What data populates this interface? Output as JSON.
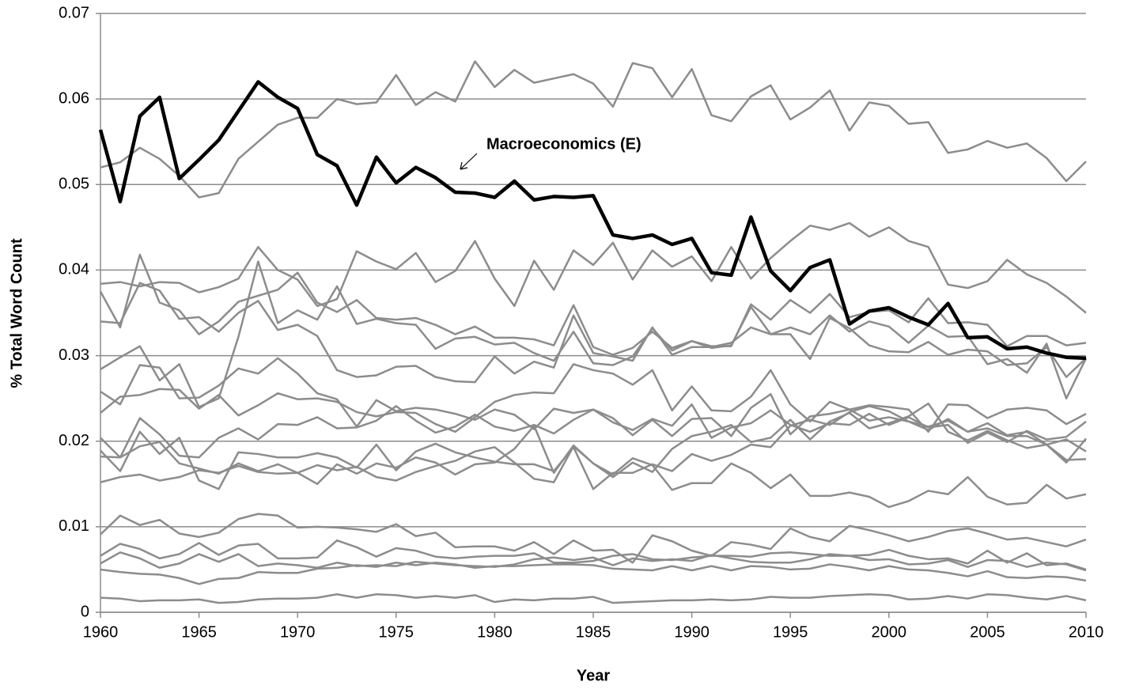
{
  "chart_data": {
    "type": "line",
    "x_label": "Year",
    "y_label": "% Total Word Count",
    "annotation": "Macroeconomics (E)",
    "x": [
      1960,
      1961,
      1962,
      1963,
      1964,
      1965,
      1966,
      1967,
      1968,
      1969,
      1970,
      1971,
      1972,
      1973,
      1974,
      1975,
      1976,
      1977,
      1978,
      1979,
      1980,
      1981,
      1982,
      1983,
      1984,
      1985,
      1986,
      1987,
      1988,
      1989,
      1990,
      1991,
      1992,
      1993,
      1994,
      1995,
      1996,
      1997,
      1998,
      1999,
      2000,
      2001,
      2002,
      2003,
      2004,
      2005,
      2006,
      2007,
      2008,
      2009,
      2010
    ],
    "xlim": [
      1960,
      2010
    ],
    "xticks": [
      1960,
      1965,
      1970,
      1975,
      1980,
      1985,
      1990,
      1995,
      2000,
      2005,
      2010
    ],
    "ylim": [
      0,
      0.07
    ],
    "yticks": [
      0,
      0.01,
      0.02,
      0.03,
      0.04,
      0.05,
      0.06,
      0.07
    ],
    "grid": true,
    "series": [
      {
        "color": "#000000",
        "values": [
          0.0564,
          0.048,
          0.058,
          0.0602,
          0.0507,
          0.0529,
          0.0552,
          0.0586,
          0.062,
          0.0602,
          0.0589,
          0.0535,
          0.0522,
          0.0476,
          0.0532,
          0.0502,
          0.052,
          0.0508,
          0.0491,
          0.049,
          0.0485,
          0.0504,
          0.0482,
          0.0486,
          0.0485,
          0.0487,
          0.0441,
          0.0437,
          0.0441,
          0.043,
          0.0437,
          0.0397,
          0.0394,
          0.0462,
          0.0399,
          0.0376,
          0.0403,
          0.0412,
          0.0337,
          0.0352,
          0.0356,
          0.0345,
          0.0336,
          0.0361,
          0.0321,
          0.0322,
          0.0308,
          0.031,
          0.0303,
          0.0298,
          0.0297
        ]
      },
      {
        "color": "#8c8c8c",
        "values": [
          0.052,
          0.0526,
          0.0543,
          0.053,
          0.051,
          0.0485,
          0.049,
          0.053,
          0.055,
          0.057,
          0.0578,
          0.0578,
          0.06,
          0.0594,
          0.0596,
          0.0628,
          0.0593,
          0.0608,
          0.0597,
          0.0644,
          0.0614,
          0.0634,
          0.0619,
          0.0624,
          0.0629,
          0.0618,
          0.0591,
          0.0642,
          0.0636,
          0.0602,
          0.0635,
          0.0581,
          0.0574,
          0.0603,
          0.0616,
          0.0576,
          0.059,
          0.061,
          0.0563,
          0.0596,
          0.0592,
          0.0571,
          0.0573,
          0.0537,
          0.0541,
          0.0551,
          0.0543,
          0.0548,
          0.0531,
          0.0504,
          0.0527
        ]
      },
      {
        "color": "#8c8c8c",
        "values": [
          0.0384,
          0.0386,
          0.0381,
          0.0386,
          0.0385,
          0.0374,
          0.038,
          0.039,
          0.0427,
          0.04,
          0.0389,
          0.0358,
          0.0366,
          0.0422,
          0.041,
          0.0401,
          0.042,
          0.0386,
          0.0399,
          0.0434,
          0.039,
          0.0358,
          0.0411,
          0.0377,
          0.0423,
          0.0406,
          0.0432,
          0.0389,
          0.0423,
          0.0404,
          0.0416,
          0.0387,
          0.0427,
          0.039,
          0.0414,
          0.0434,
          0.0452,
          0.0447,
          0.0455,
          0.0439,
          0.045,
          0.0434,
          0.0427,
          0.0383,
          0.0379,
          0.0387,
          0.0412,
          0.0395,
          0.0385,
          0.0369,
          0.035
        ]
      },
      {
        "color": "#8c8c8c",
        "values": [
          0.0375,
          0.0333,
          0.0418,
          0.0362,
          0.0353,
          0.0325,
          0.034,
          0.0363,
          0.037,
          0.0377,
          0.0397,
          0.0362,
          0.0351,
          0.0365,
          0.0344,
          0.0342,
          0.0344,
          0.0336,
          0.0325,
          0.0334,
          0.0321,
          0.0321,
          0.0319,
          0.0312,
          0.0359,
          0.031,
          0.0301,
          0.0309,
          0.0328,
          0.0309,
          0.0317,
          0.0311,
          0.0311,
          0.036,
          0.0342,
          0.0365,
          0.035,
          0.0372,
          0.0345,
          0.0351,
          0.0353,
          0.0339,
          0.0367,
          0.0338,
          0.0339,
          0.0336,
          0.0311,
          0.0323,
          0.0323,
          0.0312,
          0.0315
        ]
      },
      {
        "color": "#8c8c8c",
        "values": [
          0.034,
          0.0338,
          0.0385,
          0.0376,
          0.0343,
          0.0345,
          0.0328,
          0.035,
          0.0364,
          0.033,
          0.0336,
          0.0323,
          0.0283,
          0.0275,
          0.0277,
          0.0287,
          0.0288,
          0.0275,
          0.027,
          0.0269,
          0.0299,
          0.0279,
          0.0293,
          0.0286,
          0.0347,
          0.0303,
          0.0299,
          0.0294,
          0.0333,
          0.0301,
          0.031,
          0.031,
          0.0315,
          0.0333,
          0.0325,
          0.0333,
          0.0325,
          0.0347,
          0.0328,
          0.034,
          0.0334,
          0.0315,
          0.0335,
          0.0322,
          0.0323,
          0.029,
          0.0296,
          0.028,
          0.0314,
          0.025,
          0.0297
        ]
      },
      {
        "color": "#8c8c8c",
        "values": [
          0.0284,
          0.0298,
          0.0311,
          0.0271,
          0.029,
          0.024,
          0.025,
          0.0322,
          0.041,
          0.0338,
          0.0353,
          0.0342,
          0.0381,
          0.0337,
          0.0343,
          0.0338,
          0.0336,
          0.0308,
          0.032,
          0.0322,
          0.0313,
          0.0315,
          0.0303,
          0.0294,
          0.0328,
          0.0291,
          0.0289,
          0.0299,
          0.0332,
          0.0306,
          0.0317,
          0.0309,
          0.0312,
          0.0357,
          0.0325,
          0.0325,
          0.0296,
          0.0344,
          0.0332,
          0.0312,
          0.0305,
          0.0304,
          0.0316,
          0.0301,
          0.0307,
          0.0305,
          0.0289,
          0.0291,
          0.031,
          0.0275,
          0.0297
        ]
      },
      {
        "color": "#8c8c8c",
        "values": [
          0.0258,
          0.0243,
          0.0289,
          0.0286,
          0.025,
          0.0251,
          0.0265,
          0.0285,
          0.0279,
          0.0297,
          0.0279,
          0.0256,
          0.0249,
          0.0217,
          0.0248,
          0.0235,
          0.0239,
          0.0237,
          0.0232,
          0.0225,
          0.0237,
          0.0231,
          0.0214,
          0.0238,
          0.0233,
          0.0237,
          0.0227,
          0.0207,
          0.0225,
          0.0206,
          0.0226,
          0.0227,
          0.0206,
          0.0239,
          0.0255,
          0.0208,
          0.0229,
          0.0232,
          0.0237,
          0.0242,
          0.024,
          0.0237,
          0.0211,
          0.0243,
          0.0242,
          0.0227,
          0.0237,
          0.0239,
          0.0236,
          0.022,
          0.0232
        ]
      },
      {
        "color": "#8c8c8c",
        "values": [
          0.0233,
          0.0252,
          0.0254,
          0.0261,
          0.026,
          0.0238,
          0.0254,
          0.023,
          0.0242,
          0.0256,
          0.0249,
          0.025,
          0.0246,
          0.0234,
          0.0229,
          0.0234,
          0.0233,
          0.022,
          0.0211,
          0.0228,
          0.0246,
          0.0254,
          0.0257,
          0.0256,
          0.029,
          0.0283,
          0.0279,
          0.0266,
          0.0283,
          0.0236,
          0.0264,
          0.0236,
          0.0235,
          0.0252,
          0.0283,
          0.0243,
          0.0223,
          0.0246,
          0.0237,
          0.0224,
          0.0228,
          0.0223,
          0.0217,
          0.0224,
          0.0211,
          0.0215,
          0.0206,
          0.0206,
          0.0196,
          0.0175,
          0.0203
        ]
      },
      {
        "color": "#8c8c8c",
        "values": [
          0.0204,
          0.0181,
          0.0227,
          0.0208,
          0.0183,
          0.0181,
          0.0204,
          0.0215,
          0.0202,
          0.022,
          0.0219,
          0.0228,
          0.0215,
          0.0216,
          0.0224,
          0.0241,
          0.0224,
          0.021,
          0.0217,
          0.0231,
          0.0217,
          0.0212,
          0.0219,
          0.0209,
          0.0225,
          0.0237,
          0.0222,
          0.0213,
          0.0226,
          0.0218,
          0.0243,
          0.0204,
          0.0216,
          0.0221,
          0.0236,
          0.0219,
          0.0211,
          0.0221,
          0.0219,
          0.0232,
          0.0219,
          0.0228,
          0.0216,
          0.0219,
          0.0198,
          0.021,
          0.0199,
          0.0212,
          0.0202,
          0.0205,
          0.0223
        ]
      },
      {
        "color": "#8c8c8c",
        "values": [
          0.0189,
          0.0165,
          0.0211,
          0.0185,
          0.0204,
          0.0154,
          0.0144,
          0.0187,
          0.0185,
          0.0181,
          0.0181,
          0.0186,
          0.0181,
          0.0169,
          0.0196,
          0.0166,
          0.0188,
          0.0197,
          0.0187,
          0.0181,
          0.0176,
          0.0173,
          0.0173,
          0.0165,
          0.0193,
          0.0144,
          0.0163,
          0.0163,
          0.0173,
          0.0165,
          0.0185,
          0.0177,
          0.0184,
          0.0196,
          0.0193,
          0.0218,
          0.0225,
          0.0219,
          0.0234,
          0.0241,
          0.0235,
          0.0223,
          0.0213,
          0.0226,
          0.0211,
          0.0221,
          0.0207,
          0.0211,
          0.0196,
          0.0178,
          0.0179
        ]
      },
      {
        "color": "#8c8c8c",
        "values": [
          0.0182,
          0.0181,
          0.0194,
          0.0199,
          0.0174,
          0.0168,
          0.0162,
          0.0174,
          0.0165,
          0.0173,
          0.0163,
          0.015,
          0.0173,
          0.0162,
          0.0174,
          0.0169,
          0.0181,
          0.0175,
          0.0161,
          0.0173,
          0.0175,
          0.0191,
          0.0218,
          0.0163,
          0.0195,
          0.0174,
          0.0158,
          0.0175,
          0.0164,
          0.0191,
          0.0206,
          0.0211,
          0.0219,
          0.0199,
          0.0204,
          0.0225,
          0.0202,
          0.0223,
          0.0233,
          0.0215,
          0.0221,
          0.0229,
          0.0244,
          0.0211,
          0.0201,
          0.0212,
          0.0201,
          0.0192,
          0.0196,
          0.0202,
          0.0188
        ]
      },
      {
        "color": "#8c8c8c",
        "values": [
          0.0152,
          0.0158,
          0.0161,
          0.0154,
          0.0158,
          0.0166,
          0.0163,
          0.0171,
          0.0164,
          0.0162,
          0.0163,
          0.0172,
          0.0166,
          0.017,
          0.0158,
          0.0154,
          0.0164,
          0.0171,
          0.0177,
          0.0188,
          0.0193,
          0.0175,
          0.0156,
          0.0152,
          0.0194,
          0.0174,
          0.0161,
          0.018,
          0.0172,
          0.0143,
          0.0151,
          0.0151,
          0.0174,
          0.0163,
          0.0145,
          0.0161,
          0.0136,
          0.0136,
          0.014,
          0.0135,
          0.0123,
          0.013,
          0.0142,
          0.0138,
          0.0158,
          0.0135,
          0.0126,
          0.0128,
          0.0149,
          0.0133,
          0.0138
        ]
      },
      {
        "color": "#8c8c8c",
        "values": [
          0.0091,
          0.0113,
          0.0102,
          0.0108,
          0.0092,
          0.0088,
          0.0093,
          0.0109,
          0.0115,
          0.0113,
          0.0099,
          0.01,
          0.0099,
          0.0097,
          0.0094,
          0.0103,
          0.0089,
          0.0093,
          0.0076,
          0.0077,
          0.0077,
          0.0072,
          0.0082,
          0.0068,
          0.0084,
          0.0072,
          0.0073,
          0.0058,
          0.009,
          0.0083,
          0.0072,
          0.0066,
          0.0082,
          0.0079,
          0.0074,
          0.0098,
          0.0088,
          0.0083,
          0.0101,
          0.0096,
          0.009,
          0.0083,
          0.0088,
          0.0095,
          0.0098,
          0.0092,
          0.0085,
          0.0087,
          0.0082,
          0.0077,
          0.0085
        ]
      },
      {
        "color": "#8c8c8c",
        "values": [
          0.0066,
          0.008,
          0.0074,
          0.0063,
          0.0068,
          0.0081,
          0.0067,
          0.0078,
          0.008,
          0.0063,
          0.0063,
          0.0064,
          0.0084,
          0.0076,
          0.0065,
          0.0075,
          0.0072,
          0.0065,
          0.0063,
          0.0065,
          0.0066,
          0.0066,
          0.0069,
          0.0058,
          0.0058,
          0.006,
          0.0066,
          0.0068,
          0.0062,
          0.0061,
          0.0064,
          0.0066,
          0.0066,
          0.0065,
          0.0069,
          0.007,
          0.0068,
          0.0066,
          0.0066,
          0.0067,
          0.0073,
          0.0066,
          0.0062,
          0.0063,
          0.0057,
          0.0072,
          0.0058,
          0.0069,
          0.0055,
          0.0057,
          0.005
        ]
      },
      {
        "color": "#8c8c8c",
        "values": [
          0.0057,
          0.007,
          0.0063,
          0.0052,
          0.0057,
          0.0068,
          0.0059,
          0.0068,
          0.0054,
          0.0057,
          0.0055,
          0.0052,
          0.0058,
          0.0054,
          0.0055,
          0.0054,
          0.0059,
          0.0057,
          0.0055,
          0.0054,
          0.0053,
          0.0056,
          0.0062,
          0.0064,
          0.0061,
          0.0064,
          0.0055,
          0.0063,
          0.006,
          0.0062,
          0.006,
          0.0067,
          0.0063,
          0.0059,
          0.0058,
          0.0058,
          0.0062,
          0.0068,
          0.0066,
          0.0061,
          0.0062,
          0.0056,
          0.0057,
          0.0061,
          0.0053,
          0.0061,
          0.006,
          0.0053,
          0.0058,
          0.0056,
          0.0049
        ]
      },
      {
        "color": "#8c8c8c",
        "values": [
          0.005,
          0.0047,
          0.0045,
          0.0044,
          0.004,
          0.0033,
          0.0039,
          0.004,
          0.0047,
          0.0046,
          0.0046,
          0.0051,
          0.0052,
          0.0055,
          0.0053,
          0.0058,
          0.0055,
          0.0058,
          0.0056,
          0.0052,
          0.0054,
          0.0054,
          0.0055,
          0.0056,
          0.0056,
          0.0055,
          0.0051,
          0.005,
          0.0049,
          0.0054,
          0.0049,
          0.0054,
          0.0049,
          0.0054,
          0.0053,
          0.005,
          0.0051,
          0.0056,
          0.0053,
          0.0049,
          0.0054,
          0.005,
          0.0049,
          0.0046,
          0.0042,
          0.0048,
          0.0041,
          0.004,
          0.0042,
          0.0041,
          0.0037
        ]
      },
      {
        "color": "#8c8c8c",
        "values": [
          0.0017,
          0.0016,
          0.0013,
          0.0014,
          0.0014,
          0.0015,
          0.0011,
          0.0012,
          0.0015,
          0.0016,
          0.0016,
          0.0017,
          0.0021,
          0.0017,
          0.0021,
          0.002,
          0.0017,
          0.0019,
          0.0017,
          0.002,
          0.0012,
          0.0015,
          0.0014,
          0.0016,
          0.0016,
          0.0018,
          0.0011,
          0.0012,
          0.0013,
          0.0014,
          0.0014,
          0.0015,
          0.0014,
          0.0015,
          0.0018,
          0.0017,
          0.0017,
          0.0019,
          0.002,
          0.0021,
          0.002,
          0.0015,
          0.0016,
          0.0019,
          0.0016,
          0.0021,
          0.002,
          0.0017,
          0.0015,
          0.0019,
          0.0014
        ]
      }
    ]
  }
}
